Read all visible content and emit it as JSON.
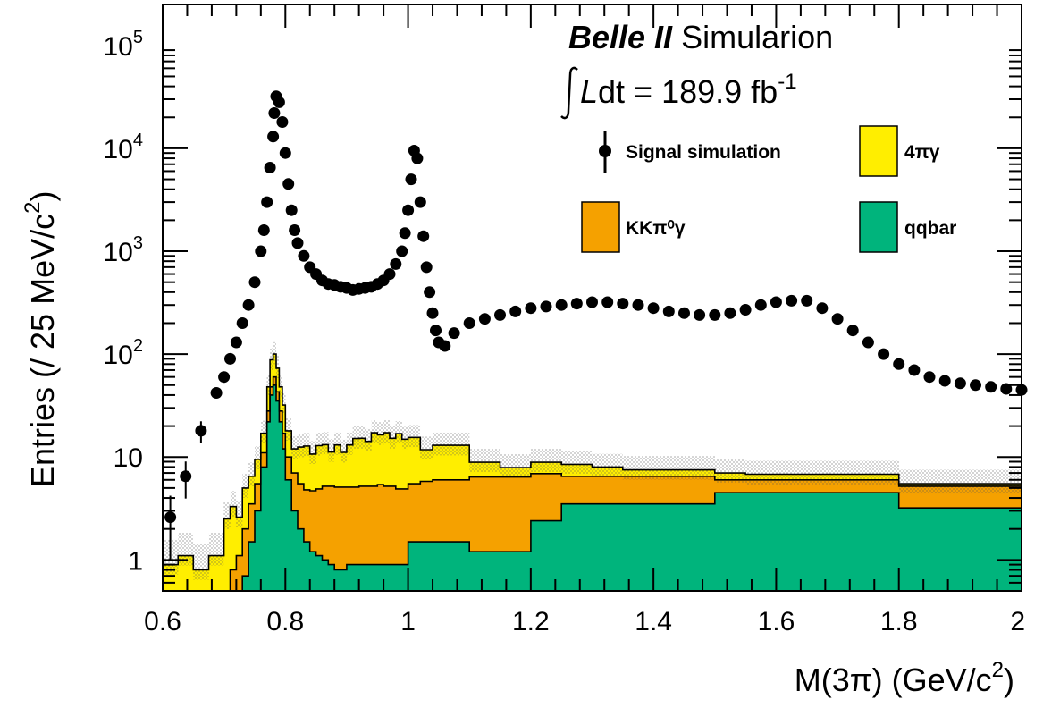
{
  "chart_data": {
    "type": "histogram",
    "x_scale": "linear",
    "y_scale": "log",
    "xlim": [
      0.6,
      2.0
    ],
    "ylim": [
      0.5,
      250000
    ],
    "xlabel": "M(3π) (GeV/c²)",
    "xlabel_parts": {
      "base": "M(3π) (GeV/c",
      "sup": "2",
      "end": ")"
    },
    "ylabel_parts": {
      "base": "Entries (/ 25 MeV/c",
      "sup": "2",
      "end": ")"
    },
    "x_ticks": [
      "0.6",
      "0.8",
      "1",
      "1.2",
      "1.4",
      "1.6",
      "1.8",
      "2"
    ],
    "x_tick_values": [
      0.6,
      0.8,
      1.0,
      1.2,
      1.4,
      1.6,
      1.8,
      2.0
    ],
    "y_ticks": [
      {
        "value": 1,
        "base": "1",
        "sup": ""
      },
      {
        "value": 10,
        "base": "10",
        "sup": ""
      },
      {
        "value": 100,
        "base": "10",
        "sup": "2"
      },
      {
        "value": 1000,
        "base": "10",
        "sup": "3"
      },
      {
        "value": 10000,
        "base": "10",
        "sup": "4"
      },
      {
        "value": 100000,
        "base": "10",
        "sup": "5"
      }
    ],
    "annotation": {
      "experiment": "Belle II",
      "label": " Simularion",
      "lumi_prefix": "L",
      "lumi_mid": "dt = 189.9 fb",
      "lumi_sup": "-1"
    },
    "legend": [
      {
        "label": "Signal simulation",
        "kind": "marker"
      },
      {
        "label": "4πγ",
        "kind": "fill",
        "color": "#ffee00"
      },
      {
        "label": "KKπ⁰γ",
        "kind": "fill",
        "color": "#f5a100"
      },
      {
        "label": "qqbar",
        "kind": "fill",
        "color": "#00b47c"
      }
    ],
    "stack": {
      "x_edges": [
        0.6,
        0.625,
        0.65,
        0.675,
        0.7,
        0.71,
        0.72,
        0.73,
        0.74,
        0.75,
        0.76,
        0.77,
        0.775,
        0.78,
        0.785,
        0.79,
        0.795,
        0.8,
        0.81,
        0.82,
        0.83,
        0.84,
        0.85,
        0.86,
        0.87,
        0.88,
        0.89,
        0.9,
        0.91,
        0.92,
        0.93,
        0.94,
        0.95,
        0.96,
        0.97,
        0.98,
        0.99,
        1.0,
        1.02,
        1.04,
        1.06,
        1.08,
        1.1,
        1.15,
        1.2,
        1.25,
        1.3,
        1.35,
        1.4,
        1.45,
        1.5,
        1.55,
        1.6,
        1.65,
        1.7,
        1.75,
        1.8,
        1.85,
        1.9,
        1.95,
        2.0
      ],
      "series": [
        {
          "name": "qqbar",
          "color": "#00b47c",
          "values": [
            0.3,
            0.3,
            0.3,
            0.3,
            0.3,
            0.3,
            0.3,
            0.7,
            1.5,
            3,
            8,
            22,
            40,
            50,
            35,
            22,
            12,
            6,
            3,
            2,
            1.5,
            1.2,
            1.1,
            1.0,
            0.9,
            0.8,
            0.8,
            0.9,
            0.9,
            0.9,
            0.9,
            0.9,
            0.9,
            0.9,
            0.9,
            0.9,
            0.9,
            1.5,
            1.5,
            1.5,
            1.5,
            1.5,
            1.2,
            1.2,
            2.4,
            3.5,
            3.5,
            3.5,
            3.5,
            3.5,
            4.5,
            4.5,
            4.5,
            4.5,
            4.5,
            4.5,
            3.2,
            3.2,
            3.2,
            3.2
          ]
        },
        {
          "name": "KKπ⁰γ",
          "color": "#f5a100",
          "values": [
            0,
            0,
            0,
            0,
            0.2,
            0.5,
            0.8,
            1.3,
            2.0,
            2.5,
            3.0,
            6,
            8,
            10,
            8,
            6,
            5,
            4,
            4,
            3.5,
            3.3,
            3.5,
            3.8,
            4.2,
            4.3,
            4.3,
            4.3,
            4.2,
            4.2,
            4.3,
            4.3,
            4.3,
            4.5,
            4.3,
            4.3,
            4.0,
            4.0,
            4.0,
            4.3,
            4.5,
            4.5,
            4.5,
            5.2,
            5.2,
            4.5,
            3.0,
            3.0,
            3.0,
            3.0,
            3.0,
            1.5,
            1.5,
            1.5,
            1.5,
            1.5,
            1.5,
            2.0,
            2.0,
            2.0,
            2.0
          ]
        },
        {
          "name": "4πγ",
          "color": "#ffee00",
          "values": [
            0.6,
            0.8,
            0.5,
            0.8,
            2.0,
            2.5,
            1.5,
            3.0,
            3.0,
            4.0,
            6.0,
            20,
            40,
            40,
            30,
            20,
            15,
            8,
            5,
            7,
            8,
            6,
            8,
            8,
            6,
            8,
            6,
            8,
            10,
            10,
            9,
            12,
            11,
            12,
            10,
            12,
            10,
            10,
            6,
            7,
            7,
            7,
            2.5,
            1.5,
            2.0,
            2.0,
            1.5,
            1.0,
            1.0,
            1.0,
            1.0,
            0.8,
            0.8,
            0.8,
            0.8,
            0.8,
            0.3,
            0.3,
            0.3,
            0.3
          ]
        }
      ]
    },
    "signal": {
      "name": "Signal simulation",
      "x": [
        0.6125,
        0.6375,
        0.6625,
        0.6875,
        0.7,
        0.71,
        0.72,
        0.73,
        0.74,
        0.75,
        0.76,
        0.765,
        0.77,
        0.775,
        0.78,
        0.782,
        0.785,
        0.79,
        0.795,
        0.8,
        0.805,
        0.81,
        0.815,
        0.82,
        0.83,
        0.84,
        0.85,
        0.86,
        0.87,
        0.88,
        0.89,
        0.9,
        0.91,
        0.92,
        0.93,
        0.94,
        0.95,
        0.96,
        0.97,
        0.98,
        0.99,
        0.995,
        1.0,
        1.005,
        1.01,
        1.015,
        1.02,
        1.025,
        1.03,
        1.035,
        1.04,
        1.045,
        1.05,
        1.06,
        1.075,
        1.1,
        1.125,
        1.15,
        1.175,
        1.2,
        1.225,
        1.25,
        1.275,
        1.3,
        1.325,
        1.35,
        1.375,
        1.4,
        1.425,
        1.45,
        1.475,
        1.5,
        1.525,
        1.55,
        1.575,
        1.6,
        1.625,
        1.65,
        1.675,
        1.7,
        1.725,
        1.75,
        1.775,
        1.8,
        1.825,
        1.85,
        1.875,
        1.9,
        1.925,
        1.95,
        1.975,
        2.0
      ],
      "y": [
        2.6,
        6.5,
        18,
        42,
        60,
        90,
        130,
        200,
        300,
        500,
        1000,
        1600,
        3000,
        6500,
        13000,
        22000,
        32000,
        28000,
        18000,
        9000,
        4500,
        2500,
        1600,
        1200,
        900,
        700,
        600,
        520,
        480,
        470,
        450,
        440,
        420,
        430,
        440,
        450,
        480,
        520,
        600,
        750,
        1000,
        1500,
        2500,
        5000,
        9500,
        8000,
        3000,
        1400,
        700,
        400,
        250,
        170,
        130,
        120,
        160,
        200,
        220,
        240,
        260,
        280,
        290,
        300,
        310,
        320,
        320,
        310,
        300,
        280,
        260,
        250,
        240,
        240,
        250,
        270,
        300,
        320,
        330,
        330,
        280,
        220,
        170,
        130,
        100,
        80,
        70,
        60,
        55,
        52,
        50,
        48,
        46,
        45
      ]
    }
  }
}
